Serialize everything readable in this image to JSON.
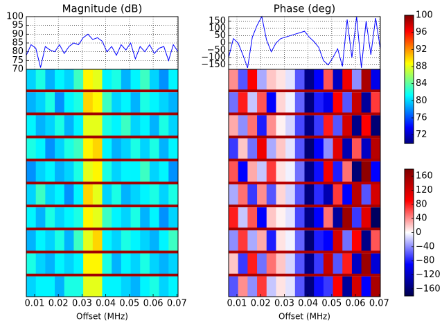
{
  "chart_data": [
    {
      "type": "line",
      "title": "Magnitude (dB)",
      "color": "#0000ff",
      "x": [
        0.0065,
        0.0085,
        0.0105,
        0.0125,
        0.0145,
        0.0165,
        0.0185,
        0.0205,
        0.0225,
        0.0245,
        0.0265,
        0.0285,
        0.0305,
        0.0325,
        0.0345,
        0.0365,
        0.0385,
        0.0405,
        0.0425,
        0.0445,
        0.0465,
        0.0485,
        0.0505,
        0.0525,
        0.0545,
        0.0565,
        0.0585,
        0.0605,
        0.0625,
        0.0645,
        0.0665,
        0.0685,
        0.0705
      ],
      "values": [
        78,
        84,
        82,
        71,
        83,
        81,
        80,
        84,
        79,
        83,
        85,
        84,
        88,
        90,
        87,
        88,
        86,
        80,
        83,
        78,
        84,
        81,
        85,
        76,
        83,
        80,
        84,
        79,
        82,
        83,
        75,
        84,
        80
      ],
      "xlim": [
        0.0065,
        0.0705
      ],
      "ylim": [
        70,
        100
      ],
      "yticks": [
        70,
        75,
        80,
        85,
        90,
        95,
        100
      ],
      "grid": true
    },
    {
      "type": "line",
      "title": "Phase (deg)",
      "color": "#0000ff",
      "x": [
        0.0065,
        0.0085,
        0.0105,
        0.0125,
        0.0145,
        0.0165,
        0.0185,
        0.0205,
        0.0225,
        0.0245,
        0.0265,
        0.0285,
        0.0305,
        0.0325,
        0.0345,
        0.0365,
        0.0385,
        0.0405,
        0.0425,
        0.0445,
        0.0465,
        0.0485,
        0.0505,
        0.0525,
        0.0545,
        0.0565,
        0.0585,
        0.0605,
        0.0625,
        0.0645,
        0.0665,
        0.0685,
        0.0705
      ],
      "values": [
        -100,
        30,
        0,
        -80,
        -170,
        40,
        120,
        180,
        20,
        -60,
        0,
        30,
        40,
        50,
        60,
        70,
        80,
        40,
        10,
        -30,
        -120,
        -150,
        -100,
        -40,
        -160,
        160,
        -100,
        180,
        -170,
        150,
        -80,
        170,
        -40
      ],
      "xlim": [
        0.0065,
        0.0705
      ],
      "ylim": [
        -180,
        180
      ],
      "yticks": [
        {
          "value": -150,
          "label": "−150"
        },
        {
          "value": -100,
          "label": "−100"
        },
        {
          "value": -50,
          "label": "−50"
        },
        0,
        50,
        100,
        150
      ],
      "grid": true
    },
    {
      "type": "heatmap",
      "xlabel": "Offset (MHz)",
      "colormap": "jet",
      "xlim": [
        0.0065,
        0.0705
      ],
      "xticks": [
        0.01,
        0.02,
        0.03,
        0.04,
        0.05,
        0.06,
        0.07
      ],
      "clim": [
        70,
        100
      ],
      "cticks": [
        72,
        76,
        80,
        84,
        88,
        92,
        96,
        100
      ],
      "z": [
        [
          80,
          82,
          79,
          81,
          80,
          83,
          89,
          88,
          81,
          82,
          79,
          81,
          83,
          80,
          78,
          81
        ],
        [
          79,
          80,
          82,
          78,
          81,
          82,
          90,
          89,
          83,
          80,
          81,
          79,
          82,
          81,
          80,
          79
        ],
        [
          81,
          79,
          80,
          82,
          79,
          81,
          88,
          88,
          82,
          81,
          83,
          80,
          81,
          79,
          82,
          80
        ],
        [
          82,
          81,
          78,
          80,
          82,
          83,
          89,
          90,
          81,
          79,
          80,
          82,
          80,
          82,
          79,
          81
        ],
        [
          78,
          80,
          81,
          79,
          80,
          82,
          88,
          89,
          82,
          80,
          81,
          81,
          83,
          80,
          81,
          78
        ],
        [
          80,
          83,
          80,
          81,
          78,
          81,
          90,
          88,
          80,
          82,
          79,
          80,
          81,
          82,
          80,
          82
        ],
        [
          81,
          79,
          82,
          80,
          81,
          82,
          89,
          88,
          83,
          81,
          80,
          82,
          79,
          81,
          78,
          80
        ],
        [
          79,
          81,
          80,
          82,
          79,
          83,
          88,
          90,
          81,
          80,
          82,
          81,
          80,
          79,
          81,
          83
        ],
        [
          82,
          80,
          79,
          81,
          80,
          81,
          89,
          89,
          82,
          79,
          81,
          80,
          82,
          80,
          79,
          80
        ],
        [
          80,
          81,
          81,
          79,
          82,
          82,
          88,
          88,
          81,
          81,
          80,
          79,
          81,
          82,
          80,
          81
        ]
      ],
      "stripes": [
        99,
        99,
        99,
        99,
        99,
        99,
        99,
        99,
        99
      ]
    },
    {
      "type": "heatmap",
      "xlabel": "Offset (MHz)",
      "colormap": "seismic",
      "xlim": [
        0.0065,
        0.0705
      ],
      "xticks": [
        0.01,
        0.02,
        0.03,
        0.04,
        0.05,
        0.06,
        0.07
      ],
      "clim": [
        -180,
        180
      ],
      "cticks": [
        {
          "value": -160,
          "label": "−160"
        },
        {
          "value": -120,
          "label": "−120"
        },
        {
          "value": -80,
          "label": "−80"
        },
        {
          "value": -40,
          "label": "−40"
        },
        0,
        40,
        80,
        120,
        160
      ],
      "z": [
        [
          40,
          -60,
          90,
          -30,
          20,
          10,
          -10,
          -60,
          -150,
          -90,
          60,
          -120,
          100,
          -40,
          150,
          -100
        ],
        [
          -50,
          80,
          -20,
          60,
          -90,
          15,
          -5,
          -55,
          -155,
          -80,
          -100,
          90,
          -60,
          130,
          -140,
          70
        ],
        [
          30,
          -40,
          50,
          -80,
          40,
          5,
          -15,
          -65,
          -150,
          -70,
          80,
          -60,
          120,
          -150,
          90,
          -160
        ],
        [
          -70,
          20,
          -50,
          100,
          -30,
          20,
          -10,
          -60,
          -160,
          -90,
          -40,
          110,
          -130,
          60,
          -120,
          140
        ],
        [
          60,
          -90,
          30,
          -20,
          70,
          10,
          -5,
          -50,
          -150,
          -85,
          100,
          -80,
          50,
          -160,
          170,
          -90
        ],
        [
          -30,
          50,
          -70,
          40,
          -60,
          15,
          -15,
          -60,
          -155,
          -75,
          -130,
          70,
          -90,
          140,
          -60,
          120
        ],
        [
          80,
          -20,
          60,
          -90,
          20,
          5,
          -10,
          -65,
          -150,
          -90,
          50,
          -140,
          160,
          -70,
          110,
          -170
        ],
        [
          -40,
          70,
          -30,
          30,
          -80,
          10,
          -5,
          -55,
          -160,
          -80,
          -90,
          120,
          -50,
          90,
          -150,
          60
        ],
        [
          20,
          -70,
          80,
          -50,
          50,
          20,
          -15,
          -60,
          -150,
          -70,
          130,
          -60,
          80,
          -120,
          160,
          -110
        ],
        [
          -60,
          40,
          -40,
          70,
          -20,
          10,
          -10,
          -60,
          -155,
          -85,
          -70,
          90,
          -140,
          120,
          -90,
          150
        ]
      ],
      "stripes": [
        150,
        145,
        155,
        150,
        140,
        150,
        155,
        145,
        150
      ]
    }
  ]
}
